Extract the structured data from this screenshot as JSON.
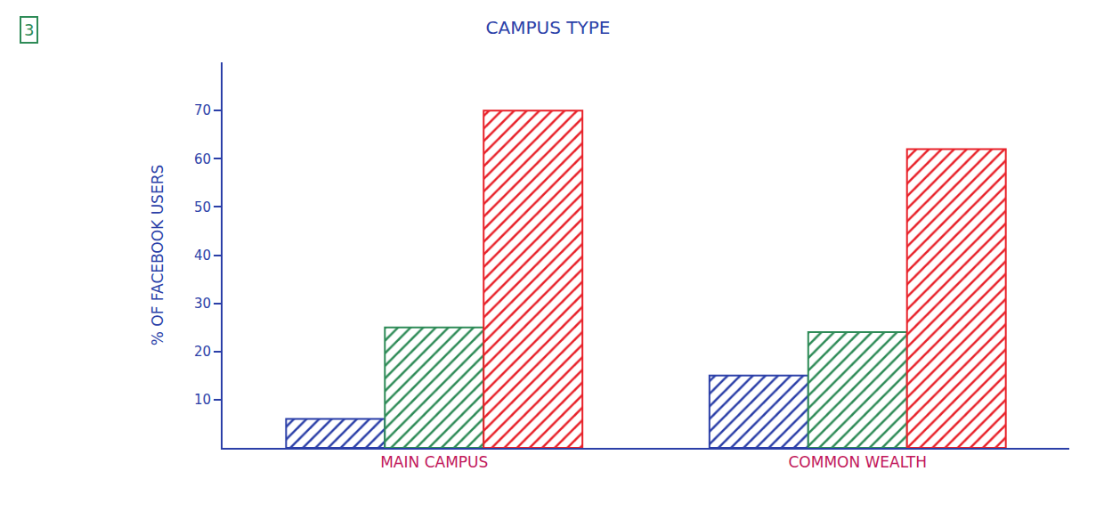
{
  "chart_data": {
    "type": "bar",
    "title": "CAMPUS TYPE",
    "y_label": "% OF FACEBOOK USERS",
    "annotations": [
      "3"
    ],
    "categories": [
      "MAIN CAMPUS",
      "COMMON WEALTH"
    ],
    "series": [
      {
        "color": "#2b3fa8",
        "values": [
          6,
          15
        ]
      },
      {
        "color": "#2e8b57",
        "values": [
          25,
          24
        ]
      },
      {
        "color": "#e8222a",
        "values": [
          70,
          62
        ]
      }
    ],
    "ylim": [
      0,
      80
    ],
    "yticks": [
      10,
      20,
      30,
      40,
      50,
      60,
      70
    ],
    "grid": false
  }
}
